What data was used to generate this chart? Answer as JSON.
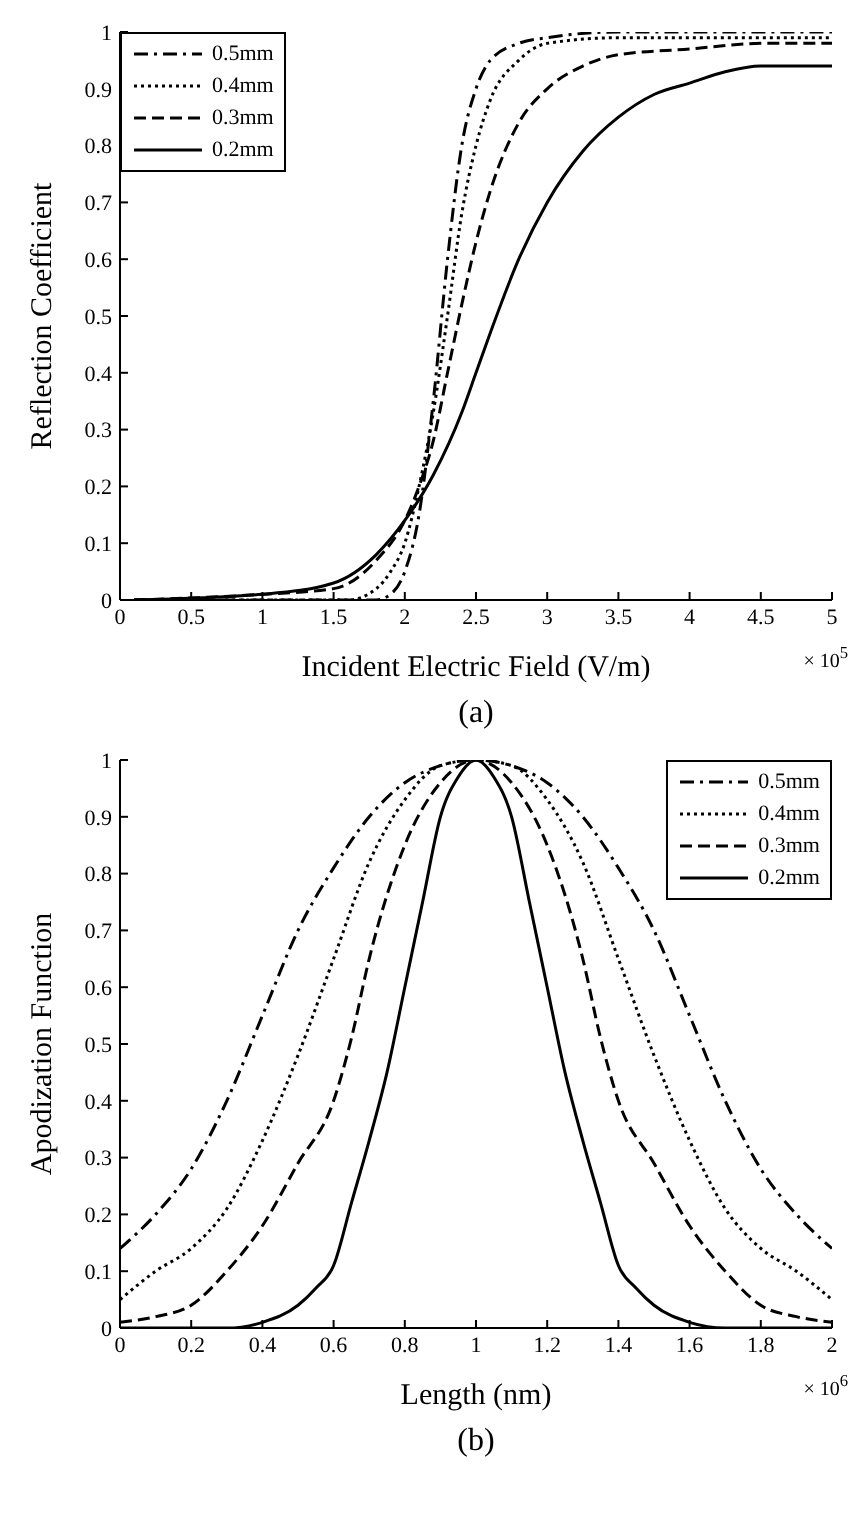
{
  "chart_data": [
    {
      "type": "line",
      "xlabel": "Incident Electric Field (V/m)",
      "ylabel": "Reflection Coefficient",
      "annotations": [
        "× 10$^{5}$",
        "(a)"
      ],
      "xlim": [
        0,
        5
      ],
      "ylim": [
        0,
        1
      ],
      "xticks": [
        0,
        0.5,
        1,
        1.5,
        2,
        2.5,
        3,
        3.5,
        4,
        4.5,
        5
      ],
      "yticks": [
        0,
        0.1,
        0.2,
        0.3,
        0.4,
        0.5,
        0.6,
        0.7,
        0.8,
        0.9,
        1
      ],
      "grid": false,
      "legend": "top left",
      "series": [
        {
          "name": "0.5mm",
          "color": "#000000",
          "line_style": "dashdot",
          "x": [
            0.1,
            1,
            1.5,
            1.8,
            1.9,
            2,
            2.1,
            2.2,
            2.3,
            2.4,
            2.5,
            2.6,
            2.8,
            3,
            3.5,
            4,
            5
          ],
          "values": [
            0,
            0,
            0,
            0,
            0.01,
            0.05,
            0.15,
            0.35,
            0.6,
            0.8,
            0.9,
            0.95,
            0.98,
            0.99,
            1,
            1,
            1
          ]
        },
        {
          "name": "0.4mm",
          "color": "#000000",
          "line_style": "dotted",
          "x": [
            0.1,
            1,
            1.6,
            1.8,
            1.9,
            2,
            2.1,
            2.2,
            2.3,
            2.4,
            2.5,
            2.6,
            2.8,
            3,
            3.5,
            4,
            5
          ],
          "values": [
            0,
            0,
            0,
            0.02,
            0.05,
            0.1,
            0.2,
            0.33,
            0.5,
            0.68,
            0.8,
            0.88,
            0.95,
            0.98,
            0.99,
            0.99,
            0.99
          ]
        },
        {
          "name": "0.3mm",
          "color": "#000000",
          "line_style": "dashed",
          "x": [
            0.1,
            1,
            1.5,
            1.8,
            2,
            2.1,
            2.2,
            2.3,
            2.4,
            2.5,
            2.6,
            2.8,
            3,
            3.25,
            3.5,
            4,
            4.5,
            5
          ],
          "values": [
            0,
            0.01,
            0.02,
            0.07,
            0.14,
            0.2,
            0.28,
            0.4,
            0.52,
            0.63,
            0.72,
            0.84,
            0.9,
            0.94,
            0.96,
            0.97,
            0.98,
            0.98
          ]
        },
        {
          "name": "0.2mm",
          "color": "#000000",
          "line_style": "solid",
          "x": [
            0.1,
            1,
            1.5,
            1.8,
            2,
            2.2,
            2.4,
            2.5,
            2.6,
            2.8,
            3,
            3.25,
            3.5,
            3.75,
            4,
            4.25,
            4.5,
            4.7,
            5
          ],
          "values": [
            0,
            0.01,
            0.03,
            0.08,
            0.14,
            0.22,
            0.33,
            0.4,
            0.47,
            0.6,
            0.7,
            0.79,
            0.85,
            0.89,
            0.91,
            0.93,
            0.94,
            0.94,
            0.94
          ]
        }
      ]
    },
    {
      "type": "line",
      "xlabel": "Length (nm)",
      "ylabel": "Apodization Function",
      "annotations": [
        "× 10$^{6}$",
        "(b)"
      ],
      "xlim": [
        0,
        2
      ],
      "ylim": [
        0,
        1
      ],
      "xticks": [
        0,
        0.2,
        0.4,
        0.6,
        0.8,
        1,
        1.2,
        1.4,
        1.6,
        1.8,
        2
      ],
      "yticks": [
        0,
        0.1,
        0.2,
        0.3,
        0.4,
        0.5,
        0.6,
        0.7,
        0.8,
        0.9,
        1
      ],
      "grid": false,
      "legend": "top right",
      "series": [
        {
          "name": "0.5mm",
          "color": "#000000",
          "line_style": "dashdot",
          "x": [
            0,
            0.1,
            0.2,
            0.3,
            0.4,
            0.5,
            0.6,
            0.7,
            0.8,
            0.9,
            1,
            1.1,
            1.2,
            1.3,
            1.4,
            1.5,
            1.6,
            1.7,
            1.8,
            1.9,
            2
          ],
          "values": [
            0.14,
            0.2,
            0.28,
            0.4,
            0.55,
            0.7,
            0.81,
            0.9,
            0.96,
            0.99,
            1,
            0.99,
            0.96,
            0.9,
            0.81,
            0.7,
            0.55,
            0.4,
            0.28,
            0.2,
            0.14
          ]
        },
        {
          "name": "0.4mm",
          "color": "#000000",
          "line_style": "dotted",
          "x": [
            0,
            0.1,
            0.2,
            0.3,
            0.4,
            0.5,
            0.6,
            0.7,
            0.8,
            0.9,
            1,
            1.1,
            1.2,
            1.3,
            1.4,
            1.5,
            1.6,
            1.7,
            1.8,
            1.9,
            2
          ],
          "values": [
            0.05,
            0.1,
            0.14,
            0.21,
            0.33,
            0.48,
            0.65,
            0.82,
            0.93,
            0.99,
            1,
            0.99,
            0.93,
            0.82,
            0.65,
            0.48,
            0.33,
            0.21,
            0.14,
            0.1,
            0.05
          ]
        },
        {
          "name": "0.3mm",
          "color": "#000000",
          "line_style": "dashed",
          "x": [
            0,
            0.1,
            0.2,
            0.3,
            0.4,
            0.5,
            0.6,
            0.65,
            0.7,
            0.8,
            0.9,
            1,
            1.1,
            1.2,
            1.3,
            1.35,
            1.4,
            1.5,
            1.6,
            1.7,
            1.8,
            1.9,
            2
          ],
          "values": [
            0.01,
            0.02,
            0.04,
            0.1,
            0.18,
            0.29,
            0.4,
            0.51,
            0.65,
            0.85,
            0.96,
            1,
            0.96,
            0.85,
            0.65,
            0.51,
            0.4,
            0.29,
            0.18,
            0.1,
            0.04,
            0.02,
            0.01
          ]
        },
        {
          "name": "0.2mm",
          "color": "#000000",
          "line_style": "solid",
          "x": [
            0,
            0.3,
            0.4,
            0.5,
            0.55,
            0.6,
            0.65,
            0.7,
            0.75,
            0.8,
            0.85,
            0.9,
            0.95,
            1,
            1.05,
            1.1,
            1.15,
            1.2,
            1.25,
            1.3,
            1.35,
            1.4,
            1.45,
            1.5,
            1.6,
            1.7,
            2
          ],
          "values": [
            0,
            0,
            0.01,
            0.04,
            0.07,
            0.11,
            0.22,
            0.33,
            0.45,
            0.6,
            0.75,
            0.9,
            0.97,
            1,
            0.97,
            0.9,
            0.75,
            0.6,
            0.45,
            0.33,
            0.22,
            0.11,
            0.07,
            0.04,
            0.01,
            0,
            0
          ]
        }
      ]
    }
  ]
}
